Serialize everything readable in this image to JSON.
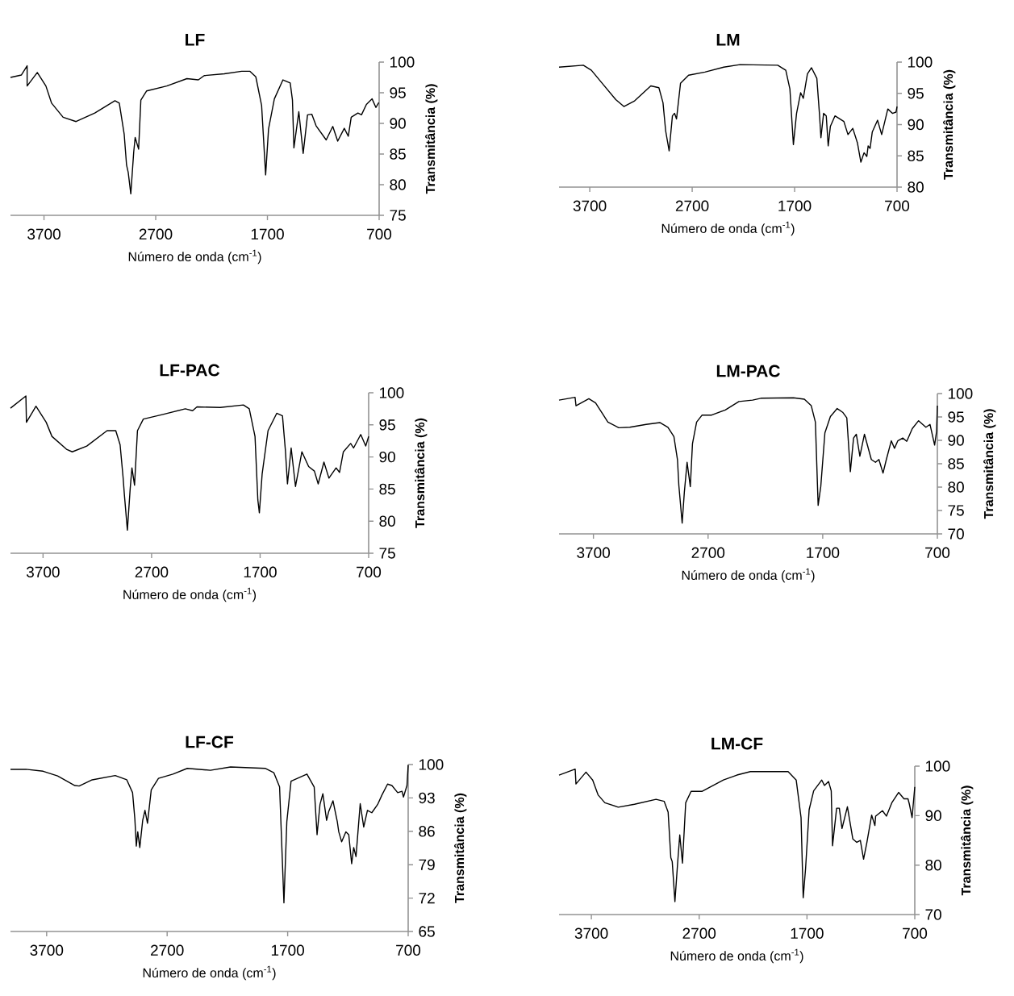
{
  "chart_data": [
    {
      "type": "line",
      "title": "LF",
      "xlabel": "Número de onda (cm$^{-1}$)",
      "ylabel": "Transmitância (%)",
      "xlim": [
        4000,
        700
      ],
      "xticks": [
        3700,
        2700,
        1700,
        700
      ],
      "ylim": [
        75,
        100
      ],
      "yticks": [
        75,
        80,
        85,
        90,
        95,
        100
      ],
      "series": [
        {
          "color": "#000000",
          "x": [
            4000,
            3902,
            3851,
            3851,
            3760,
            3683,
            3632,
            3529,
            3413,
            3245,
            3065,
            3026,
            2982,
            2961,
            2946,
            2923,
            2897,
            2884,
            2853,
            2833,
            2781,
            2601,
            2421,
            2318,
            2266,
            2086,
            1931,
            1856,
            1804,
            1752,
            1716,
            1690,
            1638,
            1561,
            1496,
            1476,
            1463,
            1419,
            1380,
            1341,
            1303,
            1264,
            1174,
            1115,
            1071,
            1012,
            976,
            950,
            890,
            858,
            814,
            763,
            729,
            703
          ],
          "values": [
            97.5,
            97.9,
            99.4,
            96.1,
            98.3,
            96.1,
            93.3,
            91.0,
            90.3,
            91.7,
            93.7,
            93.3,
            88.2,
            83.2,
            82.0,
            78.5,
            85.3,
            87.7,
            85.8,
            93.8,
            95.3,
            96.1,
            97.3,
            97.1,
            97.8,
            98.1,
            98.5,
            98.5,
            97.6,
            92.9,
            81.6,
            89.1,
            94.0,
            97.1,
            96.6,
            93.8,
            86.0,
            91.9,
            85.1,
            91.4,
            91.5,
            89.6,
            87.3,
            89.5,
            87.1,
            89.2,
            87.9,
            91.0,
            91.7,
            91.4,
            93.1,
            94.0,
            92.6,
            93.4
          ]
        }
      ]
    },
    {
      "type": "line",
      "title": "LM",
      "xlabel": "Número de onda (cm$^{-1}$)",
      "ylabel": "Transmitância (%)",
      "xlim": [
        4000,
        700
      ],
      "xticks": [
        3700,
        2700,
        1700,
        700
      ],
      "ylim": [
        80,
        100
      ],
      "yticks": [
        80,
        85,
        90,
        95,
        100
      ],
      "series": [
        {
          "color": "#000000",
          "x": [
            4000,
            3763,
            3684,
            3578,
            3446,
            3367,
            3262,
            3104,
            3025,
            2985,
            2959,
            2925,
            2893,
            2872,
            2853,
            2814,
            2735,
            2576,
            2392,
            2234,
            1865,
            1786,
            1746,
            1712,
            1681,
            1641,
            1615,
            1575,
            1535,
            1483,
            1456,
            1443,
            1417,
            1391,
            1372,
            1351,
            1306,
            1219,
            1179,
            1132,
            1087,
            1053,
            1022,
            995,
            982,
            963,
            942,
            890,
            850,
            790,
            745,
            710,
            700
          ],
          "values": [
            99.2,
            99.5,
            98.7,
            96.6,
            94.0,
            92.9,
            93.8,
            96.2,
            95.9,
            93.5,
            89.0,
            85.8,
            91.4,
            91.8,
            90.9,
            96.6,
            97.9,
            98.4,
            99.2,
            99.6,
            99.5,
            98.7,
            95.7,
            86.8,
            91.8,
            95.1,
            94.2,
            98.1,
            99.1,
            97.4,
            91.4,
            87.9,
            91.8,
            91.4,
            86.6,
            89.7,
            91.4,
            90.5,
            88.4,
            89.4,
            87.1,
            84.0,
            85.5,
            84.9,
            86.6,
            86.2,
            88.8,
            90.7,
            88.4,
            92.5,
            91.8,
            92.0,
            92.9
          ]
        }
      ]
    },
    {
      "type": "line",
      "title": "LF-PAC",
      "xlabel": "Número de onda (cm$^{-1}$)",
      "ylabel": "Transmitância (%)",
      "xlim": [
        4000,
        700
      ],
      "xticks": [
        3700,
        2700,
        1700,
        700
      ],
      "ylim": [
        75,
        100
      ],
      "yticks": [
        75,
        80,
        85,
        90,
        95,
        100
      ],
      "series": [
        {
          "color": "#000000",
          "x": [
            4000,
            3858,
            3853,
            3765,
            3671,
            3618,
            3484,
            3431,
            3297,
            3110,
            3030,
            2990,
            2963,
            2950,
            2923,
            2897,
            2881,
            2857,
            2830,
            2776,
            2603,
            2389,
            2322,
            2282,
            2068,
            1854,
            1800,
            1747,
            1721,
            1707,
            1681,
            1627,
            1547,
            1494,
            1467,
            1448,
            1414,
            1374,
            1315,
            1253,
            1200,
            1165,
            1112,
            1066,
            1000,
            968,
            933,
            866,
            839,
            773,
            727,
            700
          ],
          "values": [
            97.6,
            99.5,
            95.4,
            97.9,
            95.4,
            93.2,
            91.2,
            90.8,
            91.7,
            94.1,
            94.1,
            91.9,
            86.9,
            84.0,
            78.6,
            85.1,
            88.3,
            85.6,
            94.1,
            95.9,
            96.6,
            97.5,
            97.2,
            97.8,
            97.7,
            98.1,
            97.5,
            93.2,
            83.3,
            81.3,
            87.4,
            94.1,
            96.8,
            96.4,
            91.0,
            85.8,
            91.4,
            85.4,
            90.8,
            88.5,
            87.8,
            85.8,
            89.2,
            86.7,
            88.3,
            87.6,
            90.8,
            92.1,
            91.4,
            93.5,
            91.7,
            93.2
          ]
        }
      ]
    },
    {
      "type": "line",
      "title": "LM-PAC",
      "xlabel": "Número de onda (cm$^{-1}$)",
      "ylabel": "Transmitância (%)",
      "xlim": [
        4000,
        700
      ],
      "xticks": [
        3700,
        2700,
        1700,
        700
      ],
      "ylim": [
        70,
        100
      ],
      "yticks": [
        70,
        75,
        80,
        85,
        90,
        95,
        100
      ],
      "series": [
        {
          "color": "#000000",
          "x": [
            4000,
            3860,
            3852,
            3740,
            3681,
            3621,
            3574,
            3479,
            3383,
            3240,
            3121,
            3050,
            2998,
            2967,
            2955,
            2926,
            2907,
            2883,
            2855,
            2836,
            2800,
            2752,
            2669,
            2550,
            2431,
            2312,
            2240,
            1955,
            1860,
            1800,
            1764,
            1740,
            1717,
            1681,
            1633,
            1574,
            1526,
            1490,
            1459,
            1431,
            1407,
            1376,
            1336,
            1276,
            1240,
            1210,
            1174,
            1145,
            1102,
            1074,
            1045,
            1002,
            967,
            919,
            864,
            800,
            764,
            724,
            707,
            700
          ],
          "values": [
            98.6,
            99.2,
            97.4,
            98.9,
            98.0,
            95.7,
            93.9,
            92.7,
            92.8,
            93.4,
            93.8,
            92.8,
            90.8,
            85.9,
            80.4,
            72.3,
            78.9,
            85.3,
            80.1,
            89.3,
            93.9,
            95.4,
            95.4,
            96.5,
            98.3,
            98.6,
            99.0,
            99.1,
            98.8,
            97.4,
            93.9,
            76.1,
            80.1,
            91.6,
            95.1,
            96.8,
            96.0,
            94.8,
            83.3,
            90.5,
            91.3,
            86.6,
            91.3,
            85.9,
            85.3,
            85.9,
            83.0,
            85.9,
            89.9,
            88.3,
            89.9,
            90.5,
            89.8,
            92.5,
            94.2,
            92.8,
            93.4,
            89.0,
            91.9,
            97.4
          ]
        }
      ]
    },
    {
      "type": "line",
      "title": "LF-CF",
      "xlabel": "Número de onda (cm$^{-1}$)",
      "ylabel": "Transmitância (%)",
      "xlim": [
        4000,
        700
      ],
      "xticks": [
        3700,
        2700,
        1700,
        700
      ],
      "ylim": [
        65,
        100
      ],
      "yticks": [
        65,
        72,
        79,
        86,
        93,
        100
      ],
      "series": [
        {
          "color": "#000000",
          "x": [
            4000,
            3872,
            3729,
            3609,
            3466,
            3430,
            3322,
            3131,
            3035,
            2987,
            2968,
            2956,
            2944,
            2927,
            2903,
            2884,
            2863,
            2832,
            2772,
            2652,
            2533,
            2341,
            2174,
            1887,
            1815,
            1767,
            1731,
            1707,
            1672,
            1540,
            1480,
            1456,
            1432,
            1408,
            1377,
            1360,
            1324,
            1288,
            1276,
            1252,
            1217,
            1193,
            1169,
            1152,
            1133,
            1098,
            1069,
            1038,
            1002,
            954,
            918,
            871,
            835,
            787,
            751,
            739,
            710,
            700
          ],
          "values": [
            99.0,
            99.0,
            98.6,
            97.6,
            95.6,
            95.5,
            96.8,
            97.7,
            96.8,
            94.1,
            88.6,
            82.9,
            85.9,
            82.6,
            88.3,
            90.4,
            87.7,
            94.7,
            97.1,
            98.0,
            99.2,
            98.8,
            99.5,
            99.2,
            98.3,
            95.3,
            71.0,
            88.0,
            96.5,
            98.0,
            95.3,
            85.3,
            91.6,
            93.9,
            88.3,
            90.1,
            92.4,
            88.0,
            85.9,
            83.8,
            85.9,
            85.3,
            79.2,
            82.6,
            80.7,
            91.8,
            86.9,
            90.4,
            89.9,
            91.6,
            93.6,
            95.9,
            95.6,
            94.1,
            94.4,
            93.2,
            95.6,
            99.9
          ]
        }
      ]
    },
    {
      "type": "line",
      "title": "LM-CF",
      "xlabel": "Número de onda (cm$^{-1}$)",
      "ylabel": "Transmitância (%)",
      "xlim": [
        4000,
        700
      ],
      "xticks": [
        3700,
        2700,
        1700,
        700
      ],
      "ylim": [
        70,
        100
      ],
      "yticks": [
        70,
        80,
        90,
        100
      ],
      "series": [
        {
          "color": "#000000",
          "x": [
            4000,
            3850,
            3843,
            3750,
            3688,
            3638,
            3575,
            3450,
            3300,
            3100,
            3025,
            2988,
            2963,
            2950,
            2925,
            2900,
            2880,
            2855,
            2825,
            2775,
            2675,
            2475,
            2350,
            2225,
            1875,
            1800,
            1755,
            1735,
            1713,
            1680,
            1638,
            1563,
            1538,
            1500,
            1475,
            1463,
            1425,
            1400,
            1375,
            1325,
            1275,
            1238,
            1205,
            1175,
            1145,
            1100,
            1070,
            1063,
            1000,
            963,
            913,
            850,
            800,
            763,
            750,
            725,
            700
          ],
          "values": [
            98.2,
            99.4,
            96.4,
            98.8,
            97.2,
            94.2,
            92.6,
            91.7,
            92.3,
            93.3,
            92.9,
            90.7,
            81.5,
            80.7,
            72.6,
            80.4,
            86.1,
            80.4,
            92.6,
            94.9,
            94.9,
            97.2,
            98.2,
            98.9,
            98.9,
            97.2,
            89.6,
            73.4,
            79.3,
            91.2,
            95.0,
            97.2,
            96.1,
            96.9,
            95.0,
            83.9,
            91.5,
            91.5,
            87.4,
            91.8,
            85.3,
            84.6,
            85.0,
            81.2,
            84.5,
            90.1,
            88.0,
            89.9,
            91.0,
            89.9,
            92.6,
            94.7,
            93.4,
            93.4,
            92.3,
            89.6,
            95.8
          ]
        }
      ]
    }
  ]
}
